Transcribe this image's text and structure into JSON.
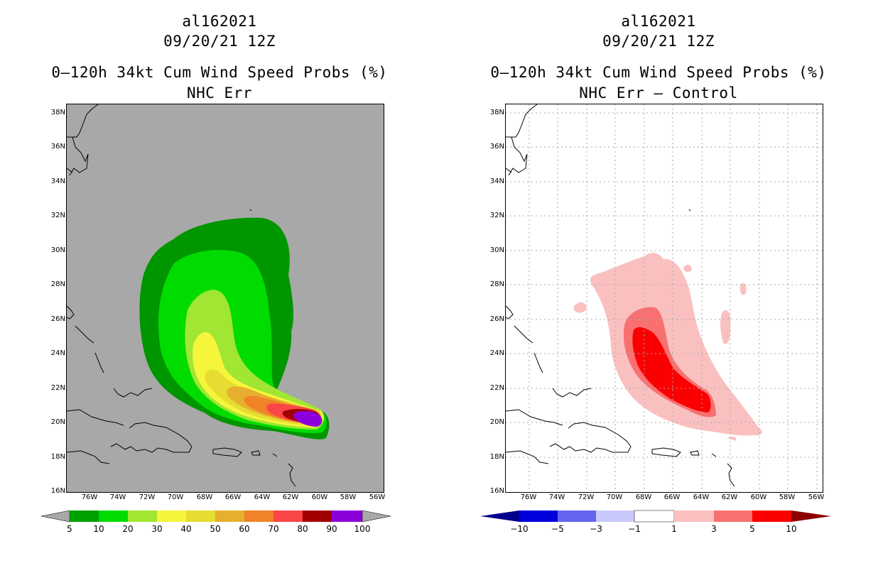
{
  "left": {
    "storm_id": "al162021",
    "datetime": "09/20/21 12Z",
    "title": "0–120h 34kt Cum Wind Speed Probs (%)",
    "subtitle": "NHC Err",
    "background": "#a8a8a8",
    "colorbar": {
      "labels": [
        "5",
        "10",
        "20",
        "30",
        "40",
        "50",
        "60",
        "70",
        "80",
        "90",
        "100"
      ],
      "colors": [
        "#008c00",
        "#00dc00",
        "#a0e632",
        "#e6dc32",
        "#e6af2d",
        "#f08228",
        "#fa3c3c",
        "#f0f0f0",
        "#a00000",
        "#8200dc"
      ],
      "bin_colors": [
        "#00a000",
        "#00dc00",
        "#a0e632",
        "#f5f53c",
        "#e6dc32",
        "#e6af2d",
        "#f08228",
        "#fa4646",
        "#a00000",
        "#8c00dc"
      ]
    }
  },
  "right": {
    "storm_id": "al162021",
    "datetime": "09/20/21 12Z",
    "title": "0–120h 34kt Cum Wind Speed Probs (%)",
    "subtitle": "NHC Err – Control",
    "background": "#ffffff",
    "colorbar": {
      "labels": [
        "−10",
        "−5",
        "−3",
        "−1",
        "1",
        "3",
        "5",
        "10"
      ],
      "bin_colors": [
        "#0000dc",
        "#6464f0",
        "#c8c8fa",
        "#ffffff",
        "#fac0c0",
        "#f87070",
        "#fa0000"
      ],
      "end_colors": [
        "#00008c",
        "#8c0000"
      ]
    }
  },
  "axes": {
    "lat_labels": [
      "38N",
      "36N",
      "34N",
      "32N",
      "30N",
      "28N",
      "26N",
      "24N",
      "22N",
      "20N",
      "18N",
      "16N"
    ],
    "lon_labels": [
      "76W",
      "74W",
      "72W",
      "70W",
      "68W",
      "66W",
      "64W",
      "62W",
      "60W",
      "58W",
      "56W"
    ],
    "lat_range": [
      16,
      38.5
    ],
    "lon_range": [
      -77.5,
      -55.5
    ]
  }
}
